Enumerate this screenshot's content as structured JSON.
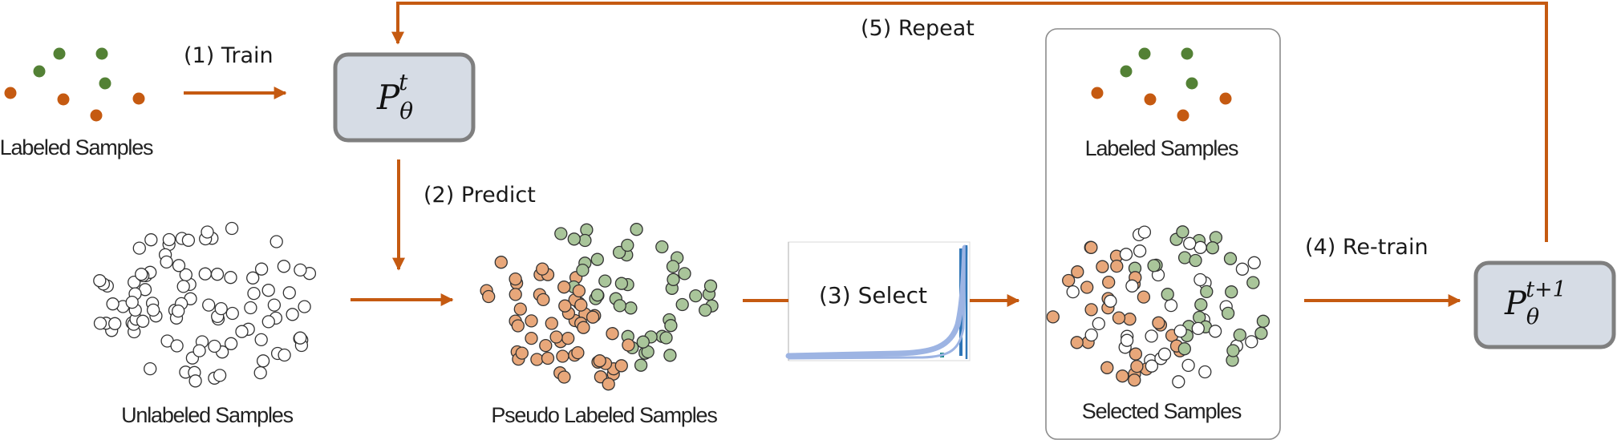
{
  "colors": {
    "arrow": "#C55A11",
    "green": "#538135",
    "orange": "#C55A11",
    "light_green": "#A9C59A",
    "light_orange": "#E8A77A",
    "model_fill": "#D6DCE5",
    "model_stroke": "#7F7F7F",
    "curve_light": "#9DB4E3",
    "curve_dark": "#2E75B6",
    "curve_teal": "#1F8A8A"
  },
  "steps": {
    "train": "(1) Train",
    "predict": "(2) Predict",
    "select": "(3) Select",
    "retrain": "(4) Re-train",
    "repeat": "(5) Repeat"
  },
  "labels": {
    "labeled_left": "Labeled Samples",
    "unlabeled": "Unlabeled Samples",
    "pseudo": "Pseudo Labeled Samples",
    "labeled_right": "Labeled Samples",
    "selected": "Selected Samples"
  },
  "models": {
    "current": {
      "base": "P",
      "sub": "θ",
      "sup": "t"
    },
    "next": {
      "base": "P",
      "sub": "θ",
      "sup": "t+1"
    }
  }
}
